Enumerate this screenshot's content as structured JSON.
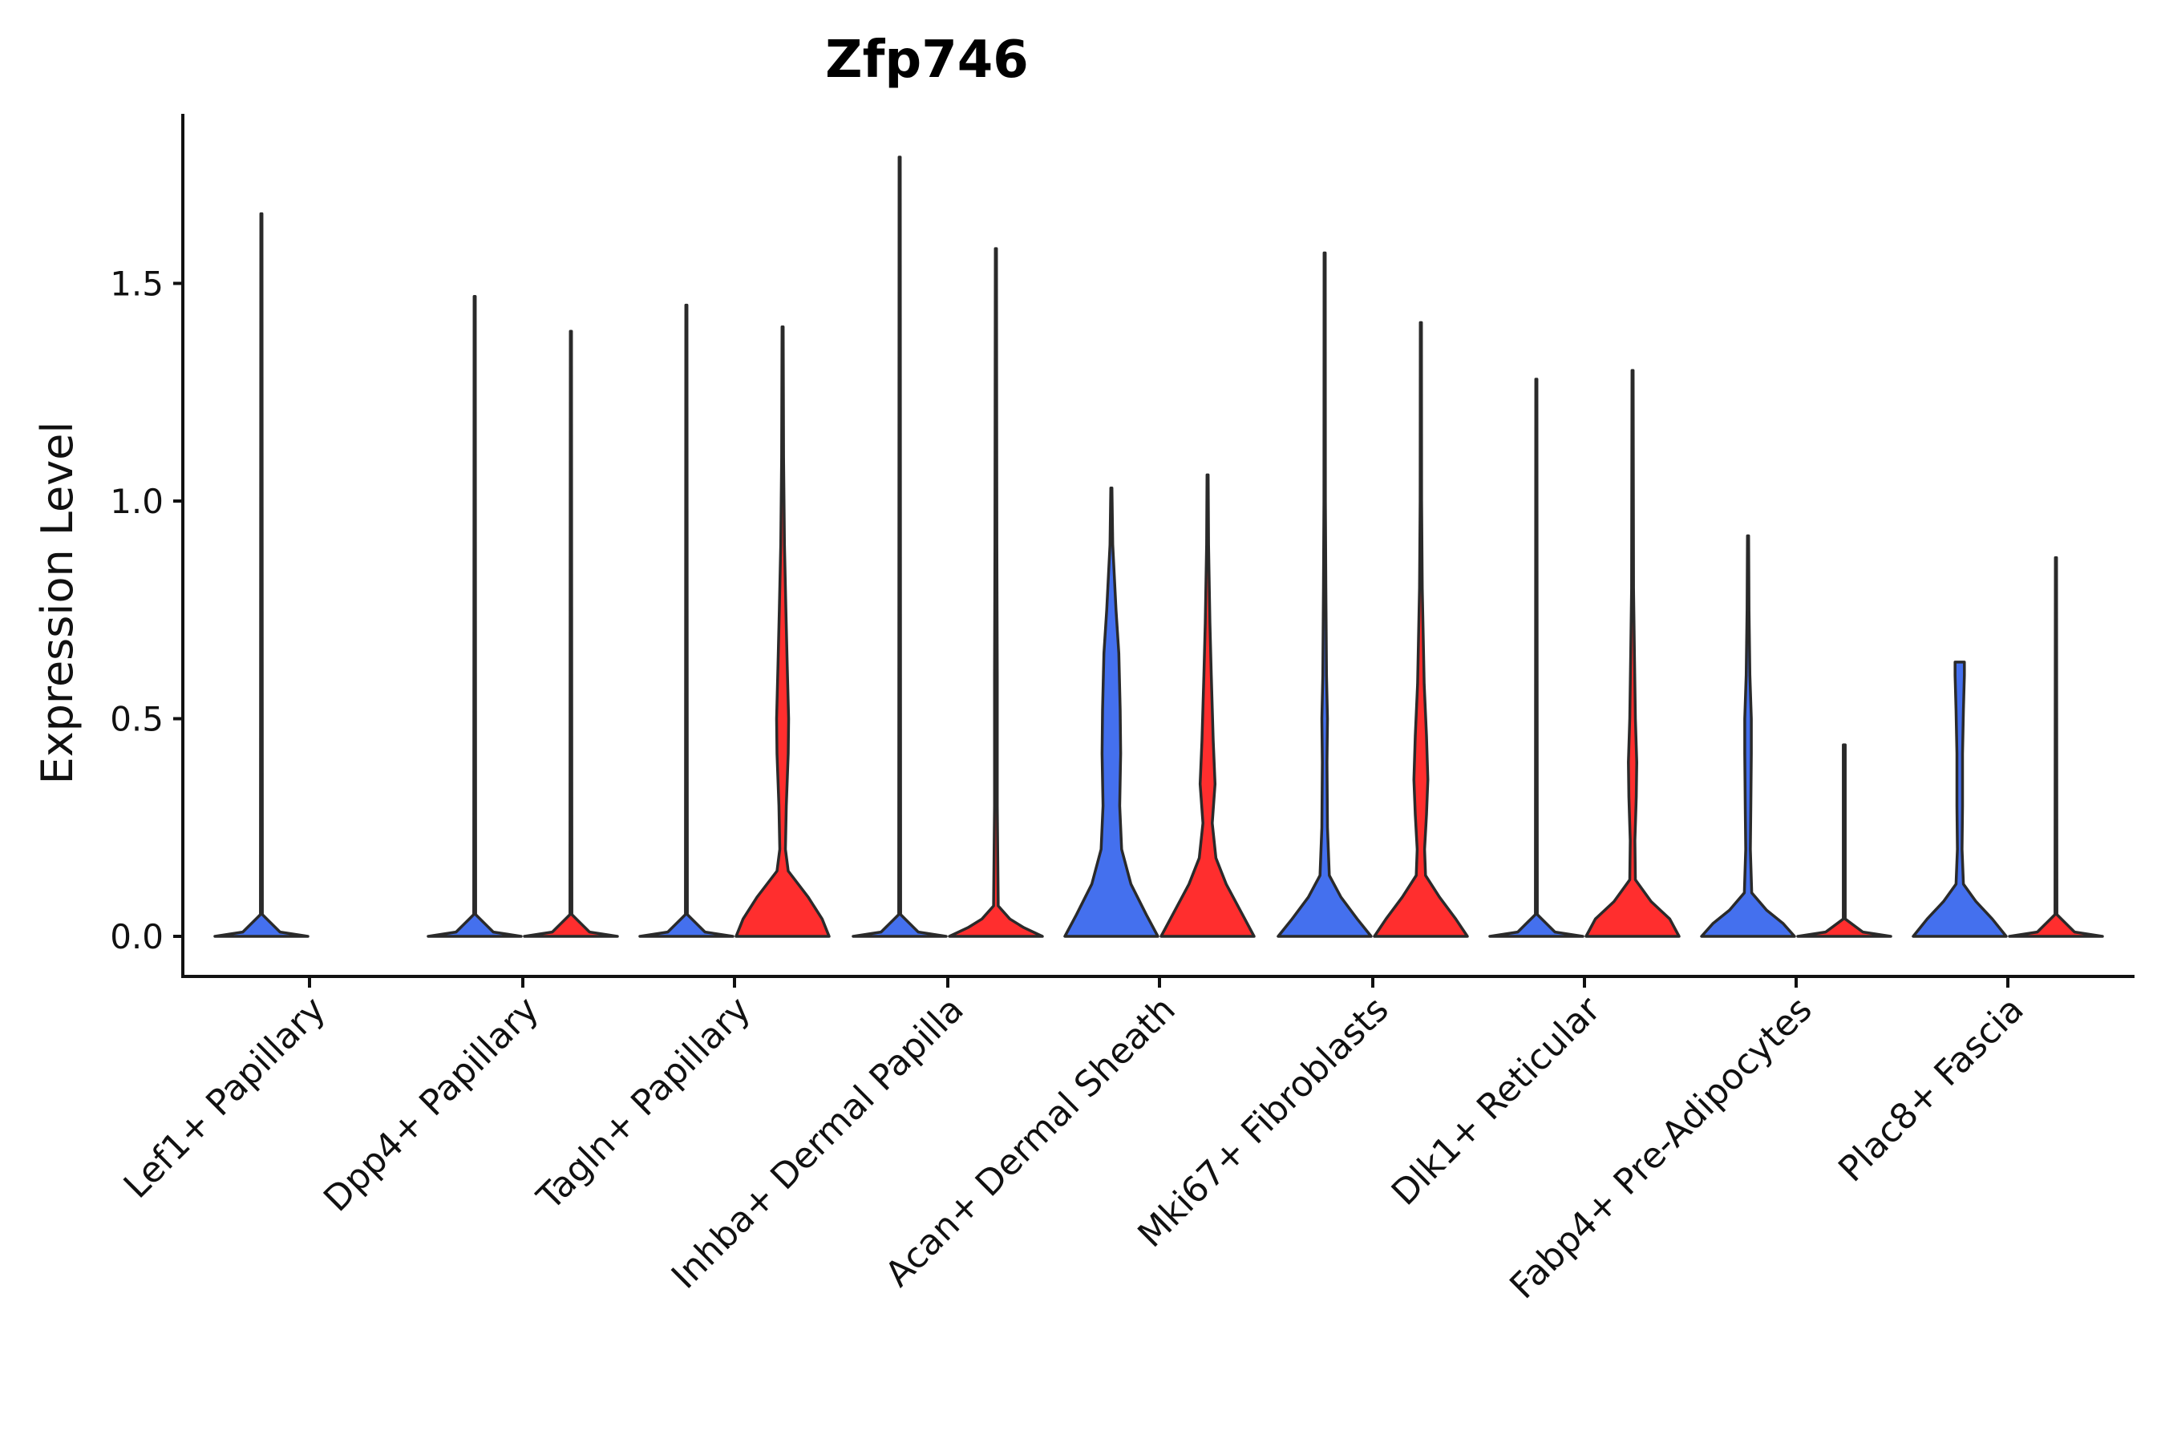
{
  "chart_data": {
    "type": "violin",
    "title": "Zfp746",
    "xlabel": "",
    "ylabel": "Expression Level",
    "ylim": [
      -0.09,
      1.9
    ],
    "yticks": [
      0.0,
      0.5,
      1.0,
      1.5
    ],
    "ytick_labels": [
      "0.0",
      "0.5",
      "1.0",
      "1.5"
    ],
    "grid": false,
    "legend": "none",
    "colors": {
      "blue": "#4470ee",
      "red": "#ff2e2e",
      "outline": "#2a2a2a"
    },
    "categories": [
      "Lef1+ Papillary",
      "Dpp4+ Papillary",
      "Tagln+ Papillary",
      "Inhba+ Dermal Papilla",
      "Acan+ Dermal Sheath",
      "Mki67+ Fibroblasts",
      "Dlk1+ Reticular",
      "Fabp4+ Pre-Adipocytes",
      "Plac8+ Fascia"
    ],
    "violins": [
      {
        "category_index": 0,
        "group": "blue",
        "max": 1.66,
        "profile": [
          [
            0,
            1
          ],
          [
            0.01,
            0.4
          ],
          [
            0.05,
            0.02
          ],
          [
            1.66,
            0.012
          ]
        ]
      },
      {
        "category_index": 0,
        "group": "red",
        "max": null,
        "profile": []
      },
      {
        "category_index": 1,
        "group": "blue",
        "max": 1.47,
        "profile": [
          [
            0,
            1
          ],
          [
            0.01,
            0.4
          ],
          [
            0.05,
            0.02
          ],
          [
            1.47,
            0.012
          ]
        ]
      },
      {
        "category_index": 1,
        "group": "red",
        "max": 1.39,
        "profile": [
          [
            0,
            1
          ],
          [
            0.01,
            0.4
          ],
          [
            0.05,
            0.02
          ],
          [
            1.39,
            0.012
          ]
        ]
      },
      {
        "category_index": 2,
        "group": "blue",
        "max": 1.45,
        "profile": [
          [
            0,
            1
          ],
          [
            0.01,
            0.4
          ],
          [
            0.05,
            0.02
          ],
          [
            1.45,
            0.012
          ]
        ]
      },
      {
        "category_index": 2,
        "group": "red",
        "max": 1.4,
        "profile": [
          [
            0,
            1
          ],
          [
            0.04,
            0.85
          ],
          [
            0.09,
            0.55
          ],
          [
            0.15,
            0.12
          ],
          [
            0.2,
            0.06
          ],
          [
            0.3,
            0.08
          ],
          [
            0.42,
            0.12
          ],
          [
            0.5,
            0.13
          ],
          [
            0.62,
            0.1
          ],
          [
            0.75,
            0.07
          ],
          [
            0.9,
            0.04
          ],
          [
            1.1,
            0.02
          ],
          [
            1.4,
            0.012
          ]
        ]
      },
      {
        "category_index": 3,
        "group": "blue",
        "max": 1.79,
        "profile": [
          [
            0,
            1
          ],
          [
            0.01,
            0.4
          ],
          [
            0.05,
            0.02
          ],
          [
            1.79,
            0.012
          ]
        ]
      },
      {
        "category_index": 3,
        "group": "red",
        "max": 1.58,
        "profile": [
          [
            0,
            1
          ],
          [
            0.02,
            0.6
          ],
          [
            0.04,
            0.3
          ],
          [
            0.07,
            0.05
          ],
          [
            0.3,
            0.03
          ],
          [
            0.6,
            0.03
          ],
          [
            0.9,
            0.02
          ],
          [
            1.58,
            0.012
          ]
        ]
      },
      {
        "category_index": 4,
        "group": "blue",
        "max": 1.03,
        "profile": [
          [
            0,
            1
          ],
          [
            0.05,
            0.75
          ],
          [
            0.12,
            0.42
          ],
          [
            0.2,
            0.22
          ],
          [
            0.3,
            0.18
          ],
          [
            0.42,
            0.2
          ],
          [
            0.52,
            0.19
          ],
          [
            0.65,
            0.16
          ],
          [
            0.75,
            0.1
          ],
          [
            0.9,
            0.03
          ],
          [
            1.03,
            0.012
          ]
        ]
      },
      {
        "category_index": 4,
        "group": "red",
        "max": 1.06,
        "profile": [
          [
            0,
            1
          ],
          [
            0.05,
            0.75
          ],
          [
            0.12,
            0.4
          ],
          [
            0.18,
            0.18
          ],
          [
            0.26,
            0.1
          ],
          [
            0.35,
            0.16
          ],
          [
            0.45,
            0.12
          ],
          [
            0.6,
            0.08
          ],
          [
            0.72,
            0.05
          ],
          [
            0.9,
            0.02
          ],
          [
            1.06,
            0.012
          ]
        ]
      },
      {
        "category_index": 5,
        "group": "blue",
        "max": 1.57,
        "profile": [
          [
            0,
            1
          ],
          [
            0.04,
            0.7
          ],
          [
            0.09,
            0.35
          ],
          [
            0.14,
            0.1
          ],
          [
            0.25,
            0.06
          ],
          [
            0.4,
            0.05
          ],
          [
            0.5,
            0.06
          ],
          [
            0.6,
            0.04
          ],
          [
            0.8,
            0.025
          ],
          [
            1.0,
            0.015
          ],
          [
            1.57,
            0.012
          ]
        ]
      },
      {
        "category_index": 5,
        "group": "red",
        "max": 1.41,
        "profile": [
          [
            0,
            1
          ],
          [
            0.04,
            0.75
          ],
          [
            0.09,
            0.4
          ],
          [
            0.14,
            0.1
          ],
          [
            0.2,
            0.08
          ],
          [
            0.28,
            0.12
          ],
          [
            0.36,
            0.15
          ],
          [
            0.46,
            0.12
          ],
          [
            0.58,
            0.07
          ],
          [
            0.8,
            0.03
          ],
          [
            1.0,
            0.015
          ],
          [
            1.41,
            0.012
          ]
        ]
      },
      {
        "category_index": 6,
        "group": "blue",
        "max": 1.28,
        "profile": [
          [
            0,
            1
          ],
          [
            0.01,
            0.4
          ],
          [
            0.05,
            0.02
          ],
          [
            1.28,
            0.012
          ]
        ]
      },
      {
        "category_index": 6,
        "group": "red",
        "max": 1.3,
        "profile": [
          [
            0,
            1
          ],
          [
            0.04,
            0.8
          ],
          [
            0.08,
            0.4
          ],
          [
            0.13,
            0.06
          ],
          [
            0.22,
            0.05
          ],
          [
            0.32,
            0.08
          ],
          [
            0.4,
            0.09
          ],
          [
            0.5,
            0.06
          ],
          [
            0.65,
            0.04
          ],
          [
            0.8,
            0.02
          ],
          [
            1.3,
            0.012
          ]
        ]
      },
      {
        "category_index": 7,
        "group": "blue",
        "max": 0.92,
        "profile": [
          [
            0,
            1
          ],
          [
            0.03,
            0.75
          ],
          [
            0.06,
            0.4
          ],
          [
            0.1,
            0.08
          ],
          [
            0.2,
            0.05
          ],
          [
            0.3,
            0.06
          ],
          [
            0.42,
            0.07
          ],
          [
            0.5,
            0.07
          ],
          [
            0.6,
            0.04
          ],
          [
            0.75,
            0.02
          ],
          [
            0.92,
            0.012
          ]
        ]
      },
      {
        "category_index": 7,
        "group": "red",
        "max": 0.44,
        "profile": [
          [
            0,
            1
          ],
          [
            0.01,
            0.4
          ],
          [
            0.04,
            0.02
          ],
          [
            0.44,
            0.02
          ]
        ]
      },
      {
        "category_index": 8,
        "group": "blue",
        "max": 0.63,
        "profile": [
          [
            0,
            1
          ],
          [
            0.04,
            0.7
          ],
          [
            0.08,
            0.35
          ],
          [
            0.12,
            0.08
          ],
          [
            0.2,
            0.05
          ],
          [
            0.3,
            0.06
          ],
          [
            0.42,
            0.06
          ],
          [
            0.52,
            0.08
          ],
          [
            0.6,
            0.1
          ],
          [
            0.63,
            0.1
          ]
        ]
      },
      {
        "category_index": 8,
        "group": "red",
        "max": 0.87,
        "profile": [
          [
            0,
            1
          ],
          [
            0.01,
            0.4
          ],
          [
            0.05,
            0.02
          ],
          [
            0.87,
            0.012
          ]
        ]
      }
    ]
  }
}
